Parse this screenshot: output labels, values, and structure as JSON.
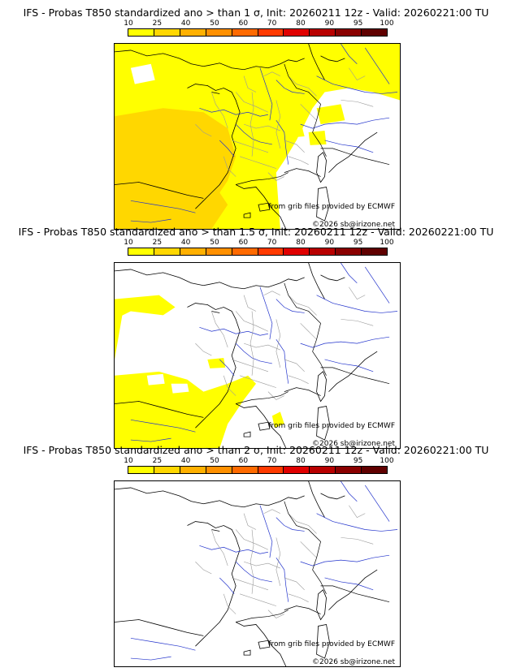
{
  "colorbar": {
    "ticks": [
      "10",
      "25",
      "40",
      "50",
      "60",
      "70",
      "80",
      "90",
      "95",
      "100"
    ],
    "colors": [
      "#ffff00",
      "#ffd700",
      "#ffb000",
      "#ff9000",
      "#ff6a00",
      "#ff3a00",
      "#e00000",
      "#b80000",
      "#8a0000",
      "#600000"
    ]
  },
  "panels": [
    {
      "title": "IFS - Probas T850  standardized ano > than 1 σ, Init: 20260211 12z - Valid: 20260221:00 TU",
      "credit_grib": "from grib files provided by ECMWF",
      "credit_copy": "©2026 sb@irizone.net",
      "coverage": "high"
    },
    {
      "title": "IFS - Probas T850  standardized ano > than 1.5 σ, Init: 20260211 12z - Valid: 20260221:00 TU",
      "credit_grib": "from grib files provided by ECMWF",
      "credit_copy": "©2026 sb@irizone.net",
      "coverage": "medium"
    },
    {
      "title": "IFS - Probas T850  standardized ano > than 2 σ, Init: 20260211 12z - Valid: 20260221:00 TU",
      "credit_grib": "from grib files provided by ECMWF",
      "credit_copy": "©2026 sb@irizone.net",
      "coverage": "none"
    }
  ]
}
